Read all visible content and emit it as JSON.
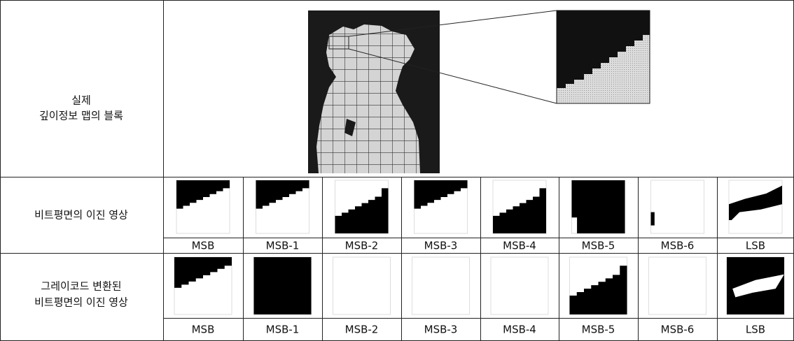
{
  "table": {
    "rows": [
      {
        "label": [
          "실제",
          "깊이정보 맵의 블록"
        ]
      },
      {
        "label": [
          "비트평면의 이진 영상"
        ],
        "planes": [
          "MSB",
          "MSB-1",
          "MSB-2",
          "MSB-3",
          "MSB-4",
          "MSB-5",
          "MSB-6",
          "LSB"
        ]
      },
      {
        "label": [
          "그레이코드 변환된",
          "비트평면의 이진 영상"
        ],
        "planes": [
          "MSB",
          "MSB-1",
          "MSB-2",
          "MSB-3",
          "MSB-4",
          "MSB-5",
          "MSB-6",
          "LSB"
        ]
      }
    ]
  }
}
